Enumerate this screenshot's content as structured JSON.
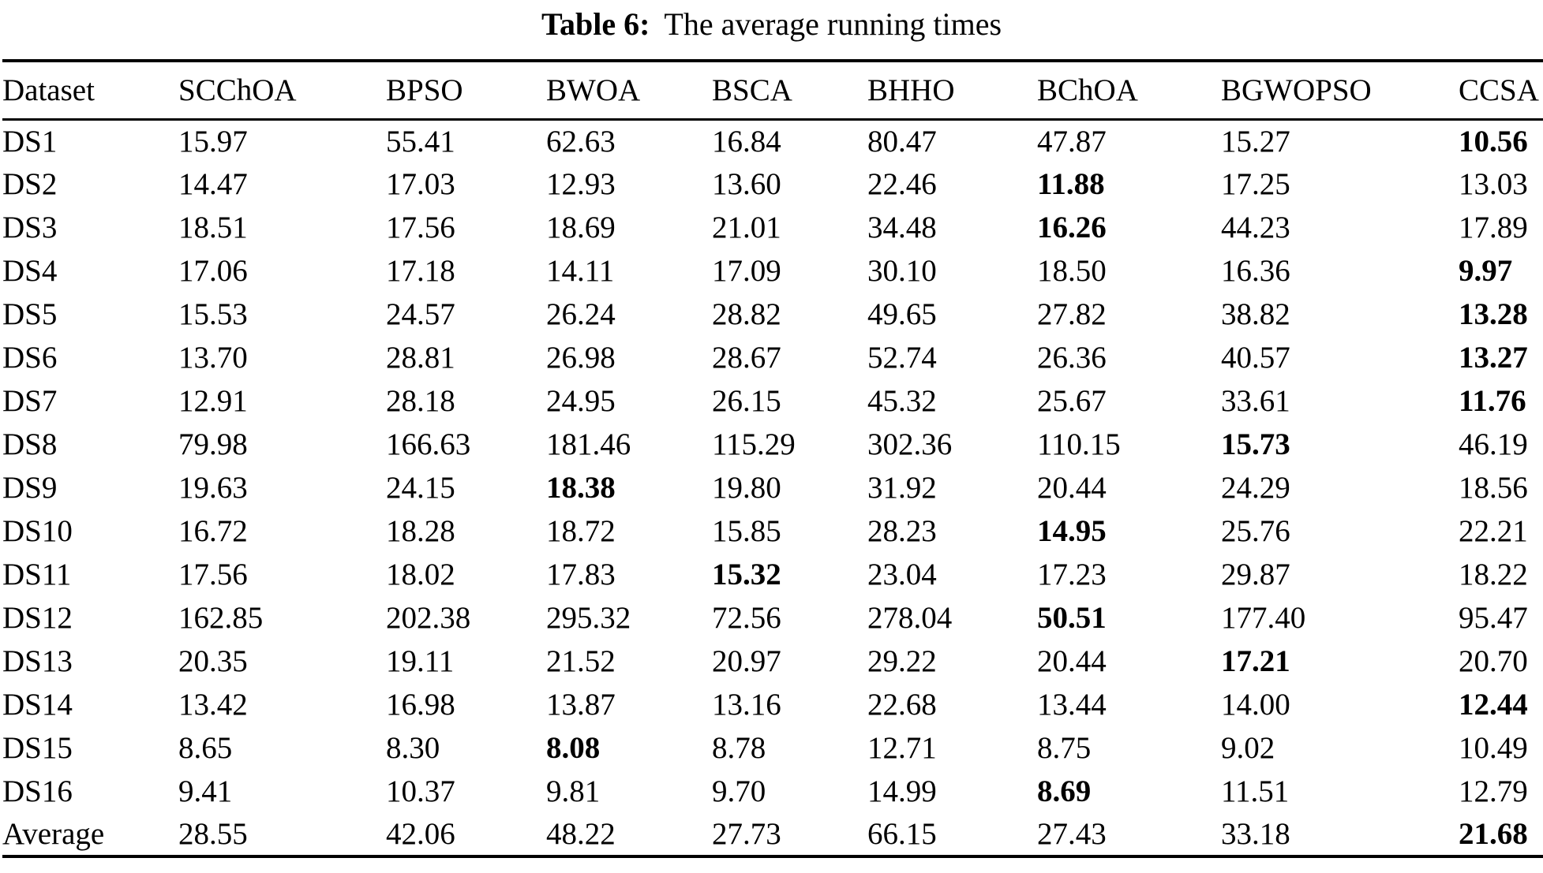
{
  "caption": {
    "label": "Table 6:",
    "text": "The average running times"
  },
  "table": {
    "columns": [
      "Dataset",
      "SCChOA",
      "BPSO",
      "BWOA",
      "BSCA",
      "BHHO",
      "BChOA",
      "BGWOPSO",
      "CCSA"
    ],
    "rows": [
      {
        "dataset": "DS1",
        "values": [
          "15.97",
          "55.41",
          "62.63",
          "16.84",
          "80.47",
          "47.87",
          "15.27",
          "10.56"
        ],
        "bold_index": 7
      },
      {
        "dataset": "DS2",
        "values": [
          "14.47",
          "17.03",
          "12.93",
          "13.60",
          "22.46",
          "11.88",
          "17.25",
          "13.03"
        ],
        "bold_index": 5
      },
      {
        "dataset": "DS3",
        "values": [
          "18.51",
          "17.56",
          "18.69",
          "21.01",
          "34.48",
          "16.26",
          "44.23",
          "17.89"
        ],
        "bold_index": 5
      },
      {
        "dataset": "DS4",
        "values": [
          "17.06",
          "17.18",
          "14.11",
          "17.09",
          "30.10",
          "18.50",
          "16.36",
          "9.97"
        ],
        "bold_index": 7
      },
      {
        "dataset": "DS5",
        "values": [
          "15.53",
          "24.57",
          "26.24",
          "28.82",
          "49.65",
          "27.82",
          "38.82",
          "13.28"
        ],
        "bold_index": 7
      },
      {
        "dataset": "DS6",
        "values": [
          "13.70",
          "28.81",
          "26.98",
          "28.67",
          "52.74",
          "26.36",
          "40.57",
          "13.27"
        ],
        "bold_index": 7
      },
      {
        "dataset": "DS7",
        "values": [
          "12.91",
          "28.18",
          "24.95",
          "26.15",
          "45.32",
          "25.67",
          "33.61",
          "11.76"
        ],
        "bold_index": 7
      },
      {
        "dataset": "DS8",
        "values": [
          "79.98",
          "166.63",
          "181.46",
          "115.29",
          "302.36",
          "110.15",
          "15.73",
          "46.19"
        ],
        "bold_index": 6
      },
      {
        "dataset": "DS9",
        "values": [
          "19.63",
          "24.15",
          "18.38",
          "19.80",
          "31.92",
          "20.44",
          "24.29",
          "18.56"
        ],
        "bold_index": 2
      },
      {
        "dataset": "DS10",
        "values": [
          "16.72",
          "18.28",
          "18.72",
          "15.85",
          "28.23",
          "14.95",
          "25.76",
          "22.21"
        ],
        "bold_index": 5
      },
      {
        "dataset": "DS11",
        "values": [
          "17.56",
          "18.02",
          "17.83",
          "15.32",
          "23.04",
          "17.23",
          "29.87",
          "18.22"
        ],
        "bold_index": 3
      },
      {
        "dataset": "DS12",
        "values": [
          "162.85",
          "202.38",
          "295.32",
          "72.56",
          "278.04",
          "50.51",
          "177.40",
          "95.47"
        ],
        "bold_index": 5
      },
      {
        "dataset": "DS13",
        "values": [
          "20.35",
          "19.11",
          "21.52",
          "20.97",
          "29.22",
          "20.44",
          "17.21",
          "20.70"
        ],
        "bold_index": 6
      },
      {
        "dataset": "DS14",
        "values": [
          "13.42",
          "16.98",
          "13.87",
          "13.16",
          "22.68",
          "13.44",
          "14.00",
          "12.44"
        ],
        "bold_index": 7
      },
      {
        "dataset": "DS15",
        "values": [
          "8.65",
          "8.30",
          "8.08",
          "8.78",
          "12.71",
          "8.75",
          "9.02",
          "10.49"
        ],
        "bold_index": 2
      },
      {
        "dataset": "DS16",
        "values": [
          "9.41",
          "10.37",
          "9.81",
          "9.70",
          "14.99",
          "8.69",
          "11.51",
          "12.79"
        ],
        "bold_index": 5
      },
      {
        "dataset": "Average",
        "values": [
          "28.55",
          "42.06",
          "48.22",
          "27.73",
          "66.15",
          "27.43",
          "33.18",
          "21.68"
        ],
        "bold_index": 7
      }
    ]
  }
}
